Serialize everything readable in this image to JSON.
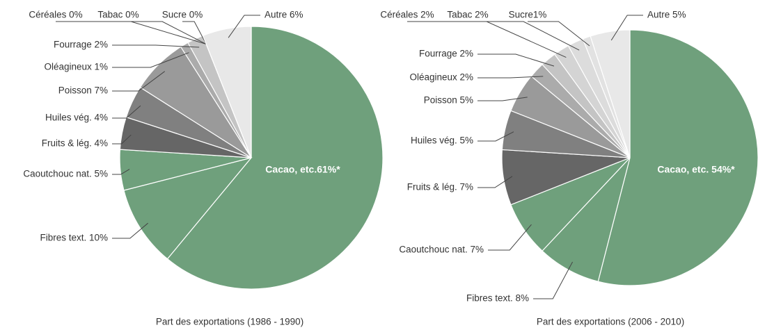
{
  "chart_data": [
    {
      "type": "pie",
      "title": "Part des exportations (1986 - 1990)",
      "values": [
        61,
        10,
        5,
        4,
        4,
        7,
        1,
        2,
        0,
        0,
        0,
        6
      ],
      "value_labels": [
        "Cacao, etc.61%*",
        "Fibres text. 10%",
        "Caoutchouc nat. 5%",
        "Fruits & lég. 4%",
        "Huiles vég. 4%",
        "Poisson 7%",
        "Oléagineux 1%",
        "Fourrage 2%",
        "Céréales 0%",
        "Tabac 0%",
        "Sucre 0%",
        "Autre 6%"
      ],
      "colors": [
        "#6fa07c",
        "#6fa07c",
        "#6fa07c",
        "#666666",
        "#808080",
        "#9a9a9a",
        "#ababab",
        "#c4c4c4",
        "#d4d4d4",
        "#dcdcdc",
        "#e2e2e2",
        "#e8e8e8"
      ]
    },
    {
      "type": "pie",
      "title": "Part des exportations (2006 - 2010)",
      "values": [
        54,
        8,
        7,
        7,
        5,
        5,
        2,
        2,
        2,
        2,
        1,
        5
      ],
      "value_labels": [
        "Cacao, etc. 54%*",
        "Fibres text. 8%",
        "Caoutchouc nat. 7%",
        "Fruits & lég. 7%",
        "Huiles vég. 5%",
        "Poisson 5%",
        "Oléagineux 2%",
        "Fourrage 2%",
        "Céréales 2%",
        "Tabac 2%",
        "Sucre1%",
        "Autre 5%"
      ],
      "colors": [
        "#6fa07c",
        "#6fa07c",
        "#6fa07c",
        "#666666",
        "#808080",
        "#9a9a9a",
        "#ababab",
        "#c4c4c4",
        "#d4d4d4",
        "#dcdcdc",
        "#e2e2e2",
        "#e8e8e8"
      ]
    }
  ]
}
